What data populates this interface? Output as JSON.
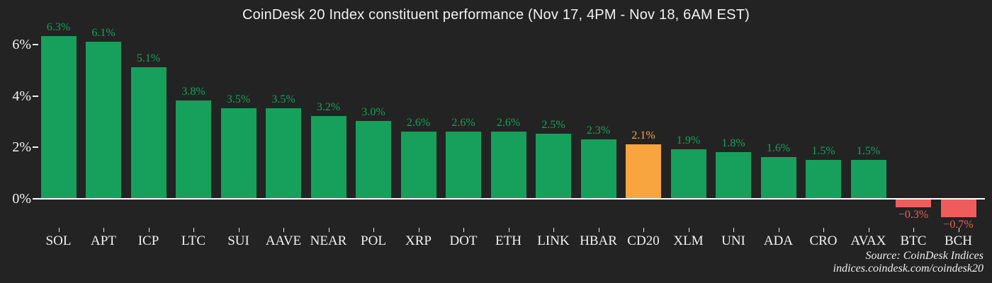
{
  "title": "CoinDesk 20 Index constituent performance (Nov 17, 4PM - Nov 18, 6AM EST)",
  "source": {
    "line1": "Source: CoinDesk Indices",
    "line2": "indices.coindesk.com/coindesk20"
  },
  "colors": {
    "background": "#232323",
    "positive": "#17a05c",
    "highlight": "#f8a43f",
    "negative": "#f05c5c",
    "text": "#f2f2f2",
    "axis": "#ffffff"
  },
  "chart_data": {
    "type": "bar",
    "title": "CoinDesk 20 Index constituent performance (Nov 17, 4PM - Nov 18, 6AM EST)",
    "categories": [
      "SOL",
      "APT",
      "ICP",
      "LTC",
      "SUI",
      "AAVE",
      "NEAR",
      "POL",
      "XRP",
      "DOT",
      "ETH",
      "LINK",
      "HBAR",
      "CD20",
      "XLM",
      "UNI",
      "ADA",
      "CRO",
      "AVAX",
      "BTC",
      "BCH"
    ],
    "values": [
      6.3,
      6.1,
      5.1,
      3.8,
      3.5,
      3.5,
      3.2,
      3.0,
      2.6,
      2.6,
      2.6,
      2.5,
      2.3,
      2.1,
      1.9,
      1.8,
      1.6,
      1.5,
      1.5,
      -0.3,
      -0.7
    ],
    "bar_labels": [
      "6.3%",
      "6.1%",
      "5.1%",
      "3.8%",
      "3.5%",
      "3.5%",
      "3.2%",
      "3.0%",
      "2.6%",
      "2.6%",
      "2.6%",
      "2.5%",
      "2.3%",
      "2.1%",
      "1.9%",
      "1.8%",
      "1.6%",
      "1.5%",
      "1.5%",
      "−0.3%",
      "−0.7%"
    ],
    "highlight_category": "CD20",
    "negative_categories": [
      "BTC",
      "BCH"
    ],
    "yticks": [
      "0%",
      "2%",
      "4%",
      "6%"
    ],
    "ytick_values": [
      0,
      2,
      4,
      6
    ],
    "ylim": [
      -1.0,
      6.8
    ],
    "xlabel": "",
    "ylabel": "",
    "grid": false,
    "legend": "none"
  }
}
